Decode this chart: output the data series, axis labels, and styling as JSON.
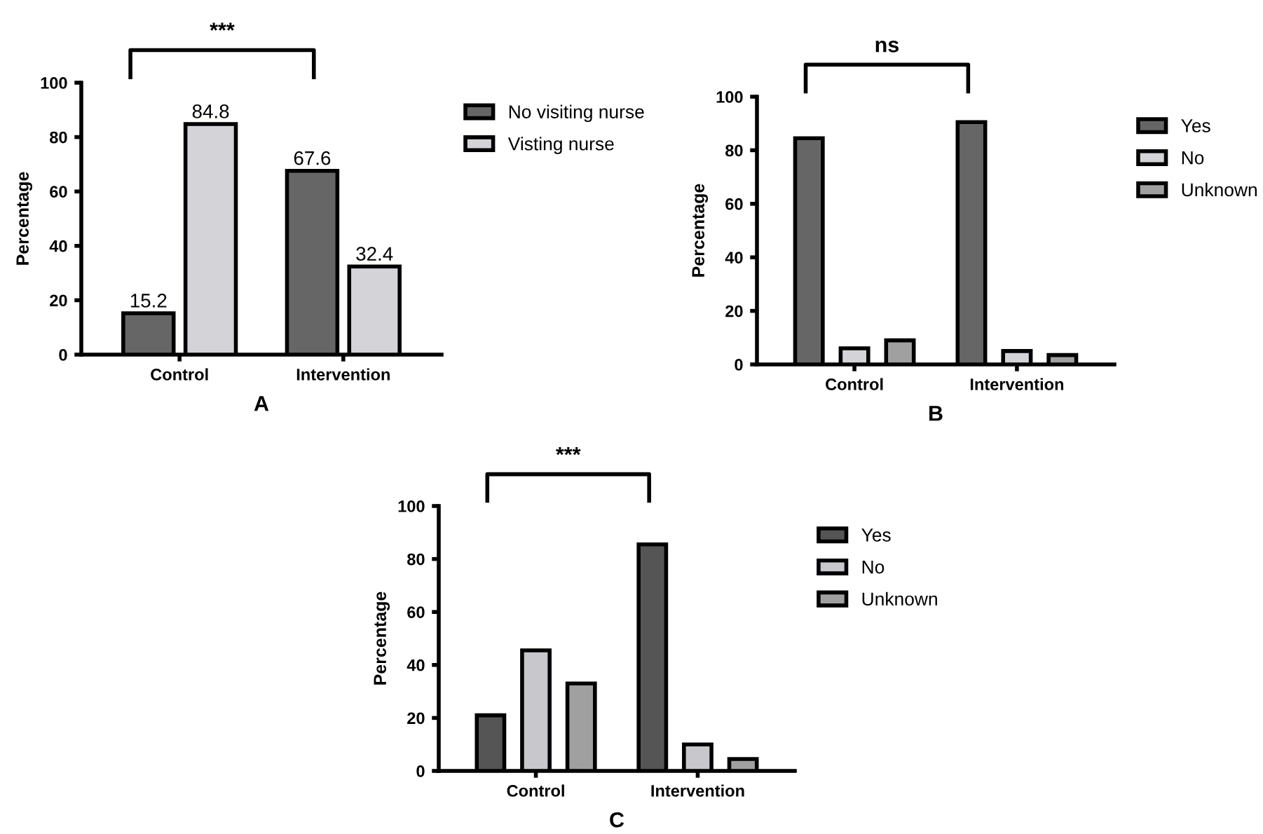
{
  "chart_data": [
    {
      "type": "bar",
      "xlabel": "A",
      "ylabel": "Percentage",
      "categories": [
        "Control",
        "Intervention"
      ],
      "ylim": [
        0,
        100
      ],
      "yticks": [
        0,
        20,
        40,
        60,
        80,
        100
      ],
      "grid": false,
      "legend": "right",
      "data_labels": true,
      "annotations": [
        "***"
      ],
      "series": [
        {
          "name": "No visiting nurse",
          "color": "#666666",
          "values": [
            15.2,
            67.6
          ]
        },
        {
          "name": "Visting nurse",
          "color": "#d3d3d8",
          "values": [
            84.8,
            32.4
          ]
        }
      ]
    },
    {
      "type": "bar",
      "xlabel": "B",
      "ylabel": "Percentage",
      "categories": [
        "Control",
        "Intervention"
      ],
      "ylim": [
        0,
        100
      ],
      "yticks": [
        0,
        20,
        40,
        60,
        80,
        100
      ],
      "grid": false,
      "legend": "right",
      "annotations": [
        "ns"
      ],
      "series": [
        {
          "name": "Yes",
          "color": "#666666",
          "values": [
            84.5,
            90.5
          ]
        },
        {
          "name": "No",
          "color": "#d3d3d8",
          "values": [
            6,
            5
          ]
        },
        {
          "name": "Unknown",
          "color": "#a0a0a0",
          "values": [
            9,
            3.5
          ]
        }
      ]
    },
    {
      "type": "bar",
      "xlabel": "C",
      "ylabel": "Percentage",
      "categories": [
        "Control",
        "Intervention"
      ],
      "ylim": [
        0,
        100
      ],
      "yticks": [
        0,
        20,
        40,
        60,
        80,
        100
      ],
      "grid": false,
      "legend": "right",
      "annotations": [
        "***"
      ],
      "series": [
        {
          "name": "Yes",
          "color": "#555555",
          "values": [
            21,
            85.5
          ]
        },
        {
          "name": "No",
          "color": "#c8c8cc",
          "values": [
            45.5,
            10
          ]
        },
        {
          "name": "Unknown",
          "color": "#a0a0a0",
          "values": [
            33,
            4.5
          ]
        }
      ]
    }
  ]
}
